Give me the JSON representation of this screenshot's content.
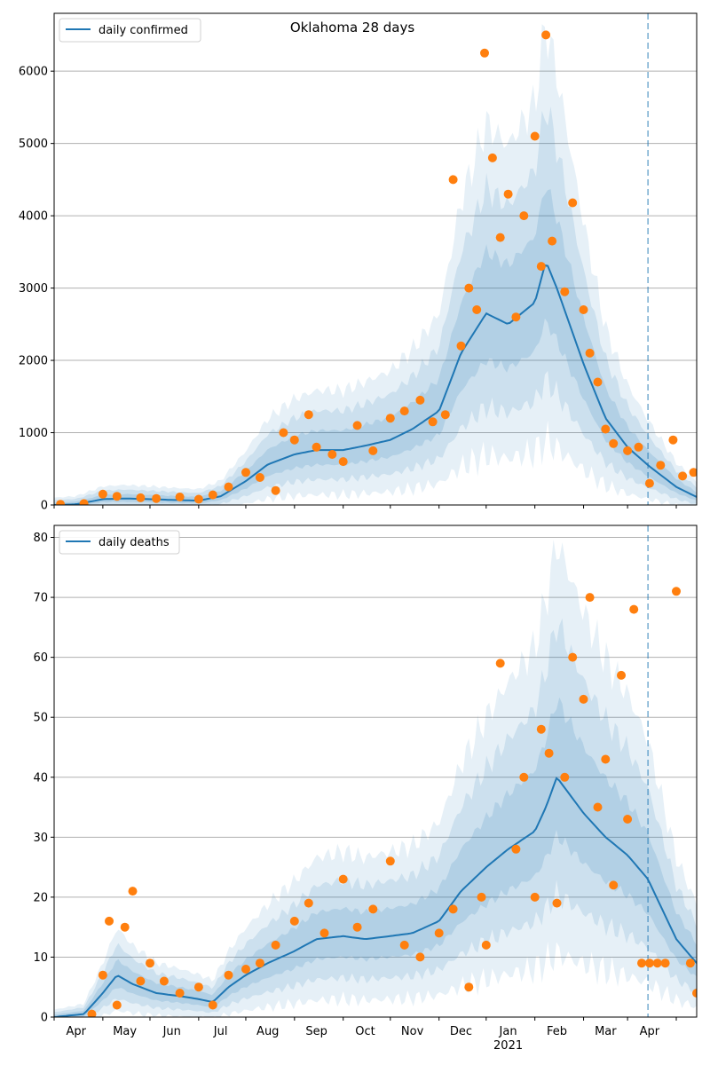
{
  "chart_data": [
    {
      "type": "line",
      "title": "Oklahoma 28 days",
      "legend": {
        "label": "daily confirmed",
        "placement": "top-left"
      },
      "ylim": [
        0,
        6800
      ],
      "yticks": [
        0,
        1000,
        2000,
        3000,
        4000,
        5000,
        6000
      ],
      "grid": true,
      "xlim": [
        "2020-03-01",
        "2021-04-14"
      ],
      "vline": "2021-03-14",
      "series": [
        {
          "name": "daily confirmed",
          "kind": "line",
          "color": "#1f77b4",
          "x": [
            "2020-03-01",
            "2020-03-15",
            "2020-04-01",
            "2020-04-15",
            "2020-05-01",
            "2020-05-15",
            "2020-06-01",
            "2020-06-15",
            "2020-07-01",
            "2020-07-15",
            "2020-08-01",
            "2020-08-15",
            "2020-09-01",
            "2020-09-15",
            "2020-10-01",
            "2020-10-15",
            "2020-11-01",
            "2020-11-15",
            "2020-12-01",
            "2020-12-15",
            "2021-01-01",
            "2021-01-08",
            "2021-01-15",
            "2021-02-01",
            "2021-02-15",
            "2021-03-01",
            "2021-03-14",
            "2021-04-01",
            "2021-04-14"
          ],
          "values": [
            0,
            10,
            80,
            90,
            80,
            70,
            60,
            120,
            330,
            560,
            700,
            760,
            760,
            820,
            900,
            1050,
            1300,
            2100,
            2650,
            2500,
            2800,
            3370,
            3000,
            1950,
            1200,
            800,
            550,
            250,
            110
          ]
        },
        {
          "name": "actual",
          "kind": "scatter",
          "color": "#ff7f0e",
          "x": [
            "2020-03-05",
            "2020-03-20",
            "2020-04-01",
            "2020-04-10",
            "2020-04-25",
            "2020-05-05",
            "2020-05-20",
            "2020-06-01",
            "2020-06-10",
            "2020-06-20",
            "2020-07-01",
            "2020-07-10",
            "2020-07-20",
            "2020-07-25",
            "2020-08-01",
            "2020-08-10",
            "2020-08-15",
            "2020-08-25",
            "2020-09-01",
            "2020-09-10",
            "2020-09-20",
            "2020-10-01",
            "2020-10-10",
            "2020-10-20",
            "2020-10-28",
            "2020-11-05",
            "2020-11-10",
            "2020-11-15",
            "2020-11-20",
            "2020-11-25",
            "2020-11-30",
            "2020-12-05",
            "2020-12-10",
            "2020-12-15",
            "2020-12-20",
            "2020-12-25",
            "2021-01-01",
            "2021-01-05",
            "2021-01-08",
            "2021-01-12",
            "2021-01-20",
            "2021-01-25",
            "2021-02-01",
            "2021-02-05",
            "2021-02-10",
            "2021-02-15",
            "2021-02-20",
            "2021-03-01",
            "2021-03-08",
            "2021-03-15",
            "2021-03-22",
            "2021-03-30",
            "2021-04-05",
            "2021-04-12"
          ],
          "values": [
            10,
            20,
            150,
            120,
            100,
            90,
            110,
            80,
            140,
            250,
            450,
            380,
            200,
            1000,
            900,
            1250,
            800,
            700,
            600,
            1100,
            750,
            1200,
            1300,
            1450,
            1150,
            1250,
            4500,
            2200,
            3000,
            2700,
            6250,
            4800,
            3700,
            4300,
            2600,
            4000,
            5100,
            3300,
            6500,
            3650,
            2950,
            4180,
            2700,
            2100,
            1700,
            1050,
            850,
            750,
            800,
            300,
            550,
            900,
            400,
            450
          ]
        }
      ]
    },
    {
      "type": "line",
      "legend": {
        "label": "daily deaths",
        "placement": "top-left"
      },
      "ylim": [
        0,
        82
      ],
      "yticks": [
        0,
        10,
        20,
        30,
        40,
        50,
        60,
        70,
        80
      ],
      "xticks": [
        "Apr",
        "May",
        "Jun",
        "Jul",
        "Aug",
        "Sep",
        "Oct",
        "Nov",
        "Dec",
        "Jan",
        "Feb",
        "Mar",
        "Apr"
      ],
      "xtick_sublabel": {
        "under": "Jan",
        "text": "2021"
      },
      "grid": true,
      "xlim": [
        "2020-03-01",
        "2021-04-14"
      ],
      "vline": "2021-03-14",
      "series": [
        {
          "name": "daily deaths",
          "kind": "line",
          "color": "#1f77b4",
          "x": [
            "2020-03-01",
            "2020-03-20",
            "2020-04-01",
            "2020-04-10",
            "2020-04-20",
            "2020-05-05",
            "2020-05-20",
            "2020-06-01",
            "2020-06-10",
            "2020-06-20",
            "2020-07-01",
            "2020-07-15",
            "2020-08-01",
            "2020-08-15",
            "2020-09-01",
            "2020-09-15",
            "2020-10-01",
            "2020-10-15",
            "2020-11-01",
            "2020-11-15",
            "2020-12-01",
            "2020-12-15",
            "2021-01-01",
            "2021-01-08",
            "2021-01-15",
            "2021-02-01",
            "2021-02-15",
            "2021-03-01",
            "2021-03-14",
            "2021-04-01",
            "2021-04-14"
          ],
          "values": [
            0,
            0.5,
            4,
            7,
            5.5,
            4,
            3.5,
            3,
            2.5,
            5,
            7,
            9,
            11,
            13,
            13.5,
            13,
            13.5,
            14,
            16,
            21,
            25,
            28,
            31,
            35,
            40,
            34,
            30,
            27,
            23,
            13,
            9
          ]
        },
        {
          "name": "actual",
          "kind": "scatter",
          "color": "#ff7f0e",
          "x": [
            "2020-03-25",
            "2020-04-01",
            "2020-04-05",
            "2020-04-10",
            "2020-04-15",
            "2020-04-20",
            "2020-04-25",
            "2020-05-01",
            "2020-05-10",
            "2020-05-20",
            "2020-06-01",
            "2020-06-10",
            "2020-06-20",
            "2020-07-01",
            "2020-07-10",
            "2020-07-20",
            "2020-08-01",
            "2020-08-10",
            "2020-08-20",
            "2020-09-01",
            "2020-09-10",
            "2020-09-20",
            "2020-10-01",
            "2020-10-10",
            "2020-10-20",
            "2020-11-01",
            "2020-11-10",
            "2020-11-20",
            "2020-11-28",
            "2020-12-01",
            "2020-12-10",
            "2020-12-20",
            "2020-12-25",
            "2021-01-01",
            "2021-01-05",
            "2021-01-10",
            "2021-01-15",
            "2021-01-20",
            "2021-01-25",
            "2021-02-01",
            "2021-02-05",
            "2021-02-10",
            "2021-02-15",
            "2021-02-20",
            "2021-02-25",
            "2021-03-01",
            "2021-03-05",
            "2021-03-10",
            "2021-03-15",
            "2021-03-20",
            "2021-03-25",
            "2021-04-01",
            "2021-04-10",
            "2021-04-14"
          ],
          "values": [
            0.5,
            7,
            16,
            2,
            15,
            21,
            6,
            9,
            6,
            4,
            5,
            2,
            7,
            8,
            9,
            12,
            16,
            19,
            14,
            23,
            15,
            18,
            26,
            12,
            10,
            14,
            18,
            5,
            20,
            12,
            59,
            28,
            40,
            20,
            48,
            44,
            19,
            40,
            60,
            53,
            70,
            35,
            43,
            22,
            57,
            33,
            68,
            9,
            9,
            9,
            9,
            71,
            9,
            4
          ]
        }
      ]
    }
  ]
}
